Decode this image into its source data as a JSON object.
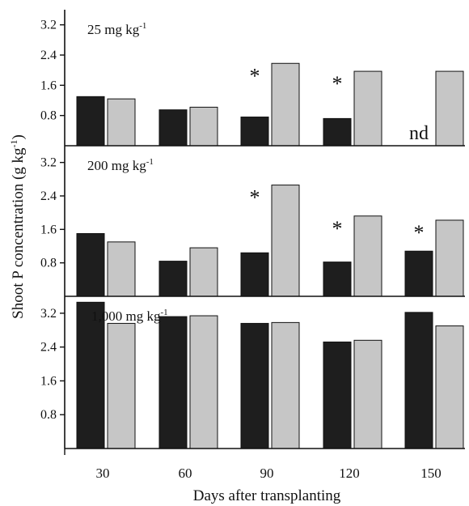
{
  "chart_data": {
    "type": "bar",
    "ylabel": "Shoot P concentration (g kg",
    "ylabel_sup": "-1",
    "ylabel_close": ")",
    "xlabel": "Days after transplanting",
    "categories": [
      "30",
      "60",
      "90",
      "120",
      "150"
    ],
    "colors": {
      "series_a": "#1e1e1e",
      "series_b": "#c6c6c6",
      "outline": "#111111"
    },
    "panels": [
      {
        "label": "25 mg kg",
        "label_sup": "-1",
        "ylim": [
          0,
          3.6
        ],
        "ticks": [
          "0.8",
          "1.6",
          "2.4",
          "3.2"
        ],
        "tick_values": [
          0.8,
          1.6,
          2.4,
          3.2
        ],
        "series": [
          {
            "values": [
              1.3,
              0.95,
              0.76,
              0.72,
              null
            ]
          },
          {
            "values": [
              1.24,
              1.02,
              2.18,
              1.97,
              1.97
            ]
          }
        ],
        "annotations": [
          {
            "category": "90",
            "text": "*"
          },
          {
            "category": "120",
            "text": "*"
          },
          {
            "category": "150",
            "text": "nd"
          }
        ]
      },
      {
        "label": "200 mg kg",
        "label_sup": "-1",
        "ylim": [
          0,
          3.6
        ],
        "ticks": [
          "0.8",
          "1.6",
          "2.4",
          "3.2"
        ],
        "tick_values": [
          0.8,
          1.6,
          2.4,
          3.2
        ],
        "series": [
          {
            "values": [
              1.5,
              0.84,
              1.04,
              0.82,
              1.08
            ]
          },
          {
            "values": [
              1.3,
              1.16,
              2.66,
              1.92,
              1.82
            ]
          }
        ],
        "annotations": [
          {
            "category": "90",
            "text": "*"
          },
          {
            "category": "120",
            "text": "*"
          },
          {
            "category": "150",
            "text": "*"
          }
        ]
      },
      {
        "label": "1,000 mg kg",
        "label_sup": "-1",
        "ylim": [
          0,
          3.6
        ],
        "ticks": [
          "0.8",
          "1.6",
          "2.4",
          "3.2"
        ],
        "tick_values": [
          0.8,
          1.6,
          2.4,
          3.2
        ],
        "series": [
          {
            "values": [
              3.46,
              3.12,
              2.96,
              2.52,
              3.22
            ]
          },
          {
            "values": [
              2.96,
              3.14,
              2.98,
              2.56,
              2.9
            ]
          }
        ],
        "annotations": []
      }
    ]
  }
}
